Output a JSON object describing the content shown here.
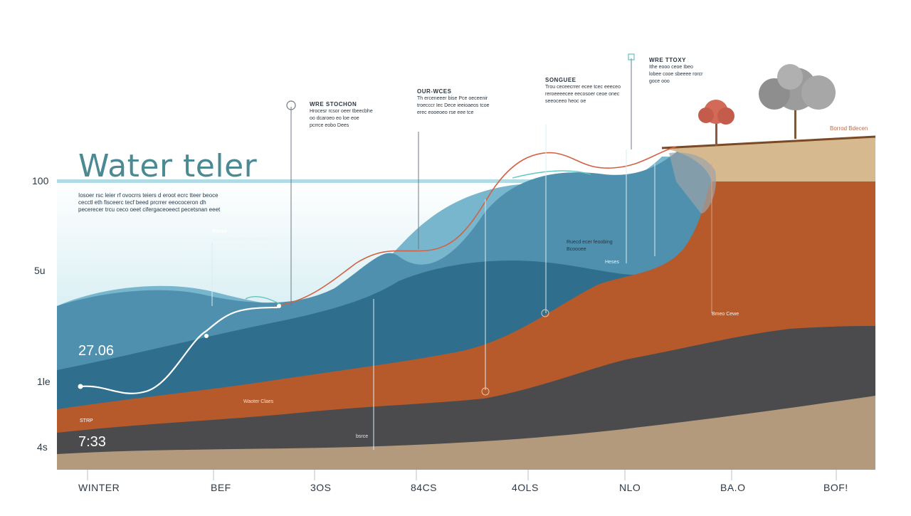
{
  "title": "Water teler",
  "intro_text": "Iosoer rsc leier rf ovocrrs teiers d eroot ecrc tteer beoce cecctl eth fisceerc tecf beed prcrrer eeococeron dh pecerecer trcu ceco oeet cifergaceoeect pecetsnan eeet",
  "y_axis_labels": [
    "100",
    "5u",
    "1le",
    "4s"
  ],
  "x_axis_labels": [
    "WINTER",
    "BEF",
    "3OS",
    "84CS",
    "4OLS",
    "NLO",
    "BA.O",
    "BOF!"
  ],
  "values": {
    "upper": "27.06",
    "lower": "7:33"
  },
  "small_labels": {
    "strp": "STRP",
    "water_class": "Waoter Claes",
    "rasse": "Rasse",
    "dark_label": "bsrce"
  },
  "annotations": [
    {
      "heading": "",
      "text": "Sirsiro scrsrest eoocoseer oses tssoer eeee cossser ctseossesz soro"
    },
    {
      "heading": "WRE STOCHON",
      "text": "Hrocesr rcsor oeer tbeecbhe oo dcaroeo eo loe eoe pcrrce eobo Dees"
    },
    {
      "heading": "OUR-WCES",
      "text": "Th erceneeer bise Pce oeceenir troecccr Iec Dece ieeioaeos tcoe erec eooeoeo rse eee tce"
    },
    {
      "heading": "SONGUEE",
      "text": "Trou ceceecrrer ecee tcec eeeceo reroeeeecee eecosoer ceoe onec seeoceeo heoc oe"
    },
    {
      "heading": "WRE TTOXY",
      "text": "Ithe eooo ceoe Ibeo lobee cooe sbeeee rorcr goce ooo"
    },
    {
      "heading": "",
      "text": "Ruecd ecer feoobing Bcoooee"
    },
    {
      "heading": "",
      "text": "Heses"
    },
    {
      "heading": "",
      "text": "Bmeo Cewe"
    }
  ],
  "top_right_label": "Borrod Bdecen",
  "colors": {
    "water_light": "#bfe3ec",
    "water_mid": "#67a8c2",
    "water_deep": "#3d7f9c",
    "water_darkest": "#2b6682",
    "clay": "#b65a2c",
    "rock": "#4b4b4e",
    "sand": "#b39a7c",
    "surface_soil": "#d7b98f",
    "curve_red": "#d26245",
    "curve_white": "#ffffff",
    "curve_teal": "#5fc6c0"
  },
  "icons": [
    "tree-icon",
    "cloud-icon",
    "marker-icon"
  ]
}
